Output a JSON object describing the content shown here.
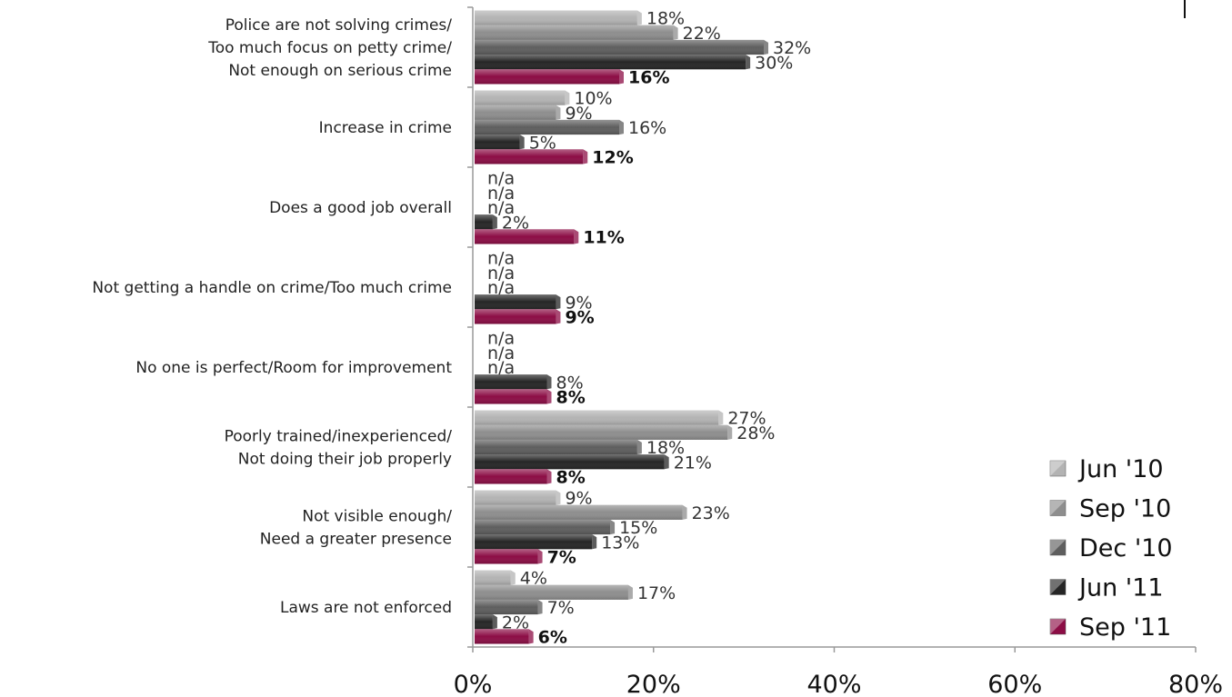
{
  "chart_data": {
    "type": "bar",
    "orientation": "horizontal",
    "title": "",
    "xlabel": "",
    "ylabel": "",
    "xlim": [
      0,
      80
    ],
    "x_ticks": [
      "0%",
      "20%",
      "40%",
      "60%",
      "80%"
    ],
    "grid": false,
    "legend_position": "bottom-right",
    "categories": [
      [
        "Police are not solving crimes/",
        "Too much focus on petty crime/",
        "Not enough on serious crime"
      ],
      [
        "Increase in crime"
      ],
      [
        "Does a good job overall"
      ],
      [
        "Not getting a handle on crime/Too much crime"
      ],
      [
        "No one is perfect/Room for improvement"
      ],
      [
        "Poorly trained/inexperienced/",
        "Not doing their job properly"
      ],
      [
        "Not visible enough/",
        "Need a greater presence"
      ],
      [
        "Laws are not enforced"
      ]
    ],
    "series": [
      {
        "name": "Jun '10",
        "color": "#b3b3b3",
        "values": [
          18,
          10,
          null,
          null,
          null,
          27,
          9,
          4
        ],
        "labels": [
          "18%",
          "10%",
          "n/a",
          "n/a",
          "n/a",
          "27%",
          "9%",
          "4%"
        ]
      },
      {
        "name": "Sep '10",
        "color": "#8e8e8e",
        "values": [
          22,
          9,
          null,
          null,
          null,
          28,
          23,
          17
        ],
        "labels": [
          "22%",
          "9%",
          "n/a",
          "n/a",
          "n/a",
          "28%",
          "23%",
          "17%"
        ]
      },
      {
        "name": "Dec '10",
        "color": "#5e5e5e",
        "values": [
          32,
          16,
          null,
          null,
          null,
          18,
          15,
          7
        ],
        "labels": [
          "32%",
          "16%",
          "n/a",
          "n/a",
          "n/a",
          "18%",
          "15%",
          "7%"
        ]
      },
      {
        "name": "Jun '11",
        "color": "#262626",
        "values": [
          30,
          5,
          2,
          9,
          8,
          21,
          13,
          2
        ],
        "labels": [
          "30%",
          "5%",
          "2%",
          "9%",
          "8%",
          "21%",
          "13%",
          "2%"
        ]
      },
      {
        "name": "Sep '11",
        "color": "#8c0d45",
        "values": [
          16,
          12,
          11,
          9,
          8,
          8,
          7,
          6
        ],
        "labels": [
          "16%",
          "12%",
          "11%",
          "9%",
          "8%",
          "8%",
          "7%",
          "6%"
        ],
        "bold_labels": true
      }
    ]
  }
}
